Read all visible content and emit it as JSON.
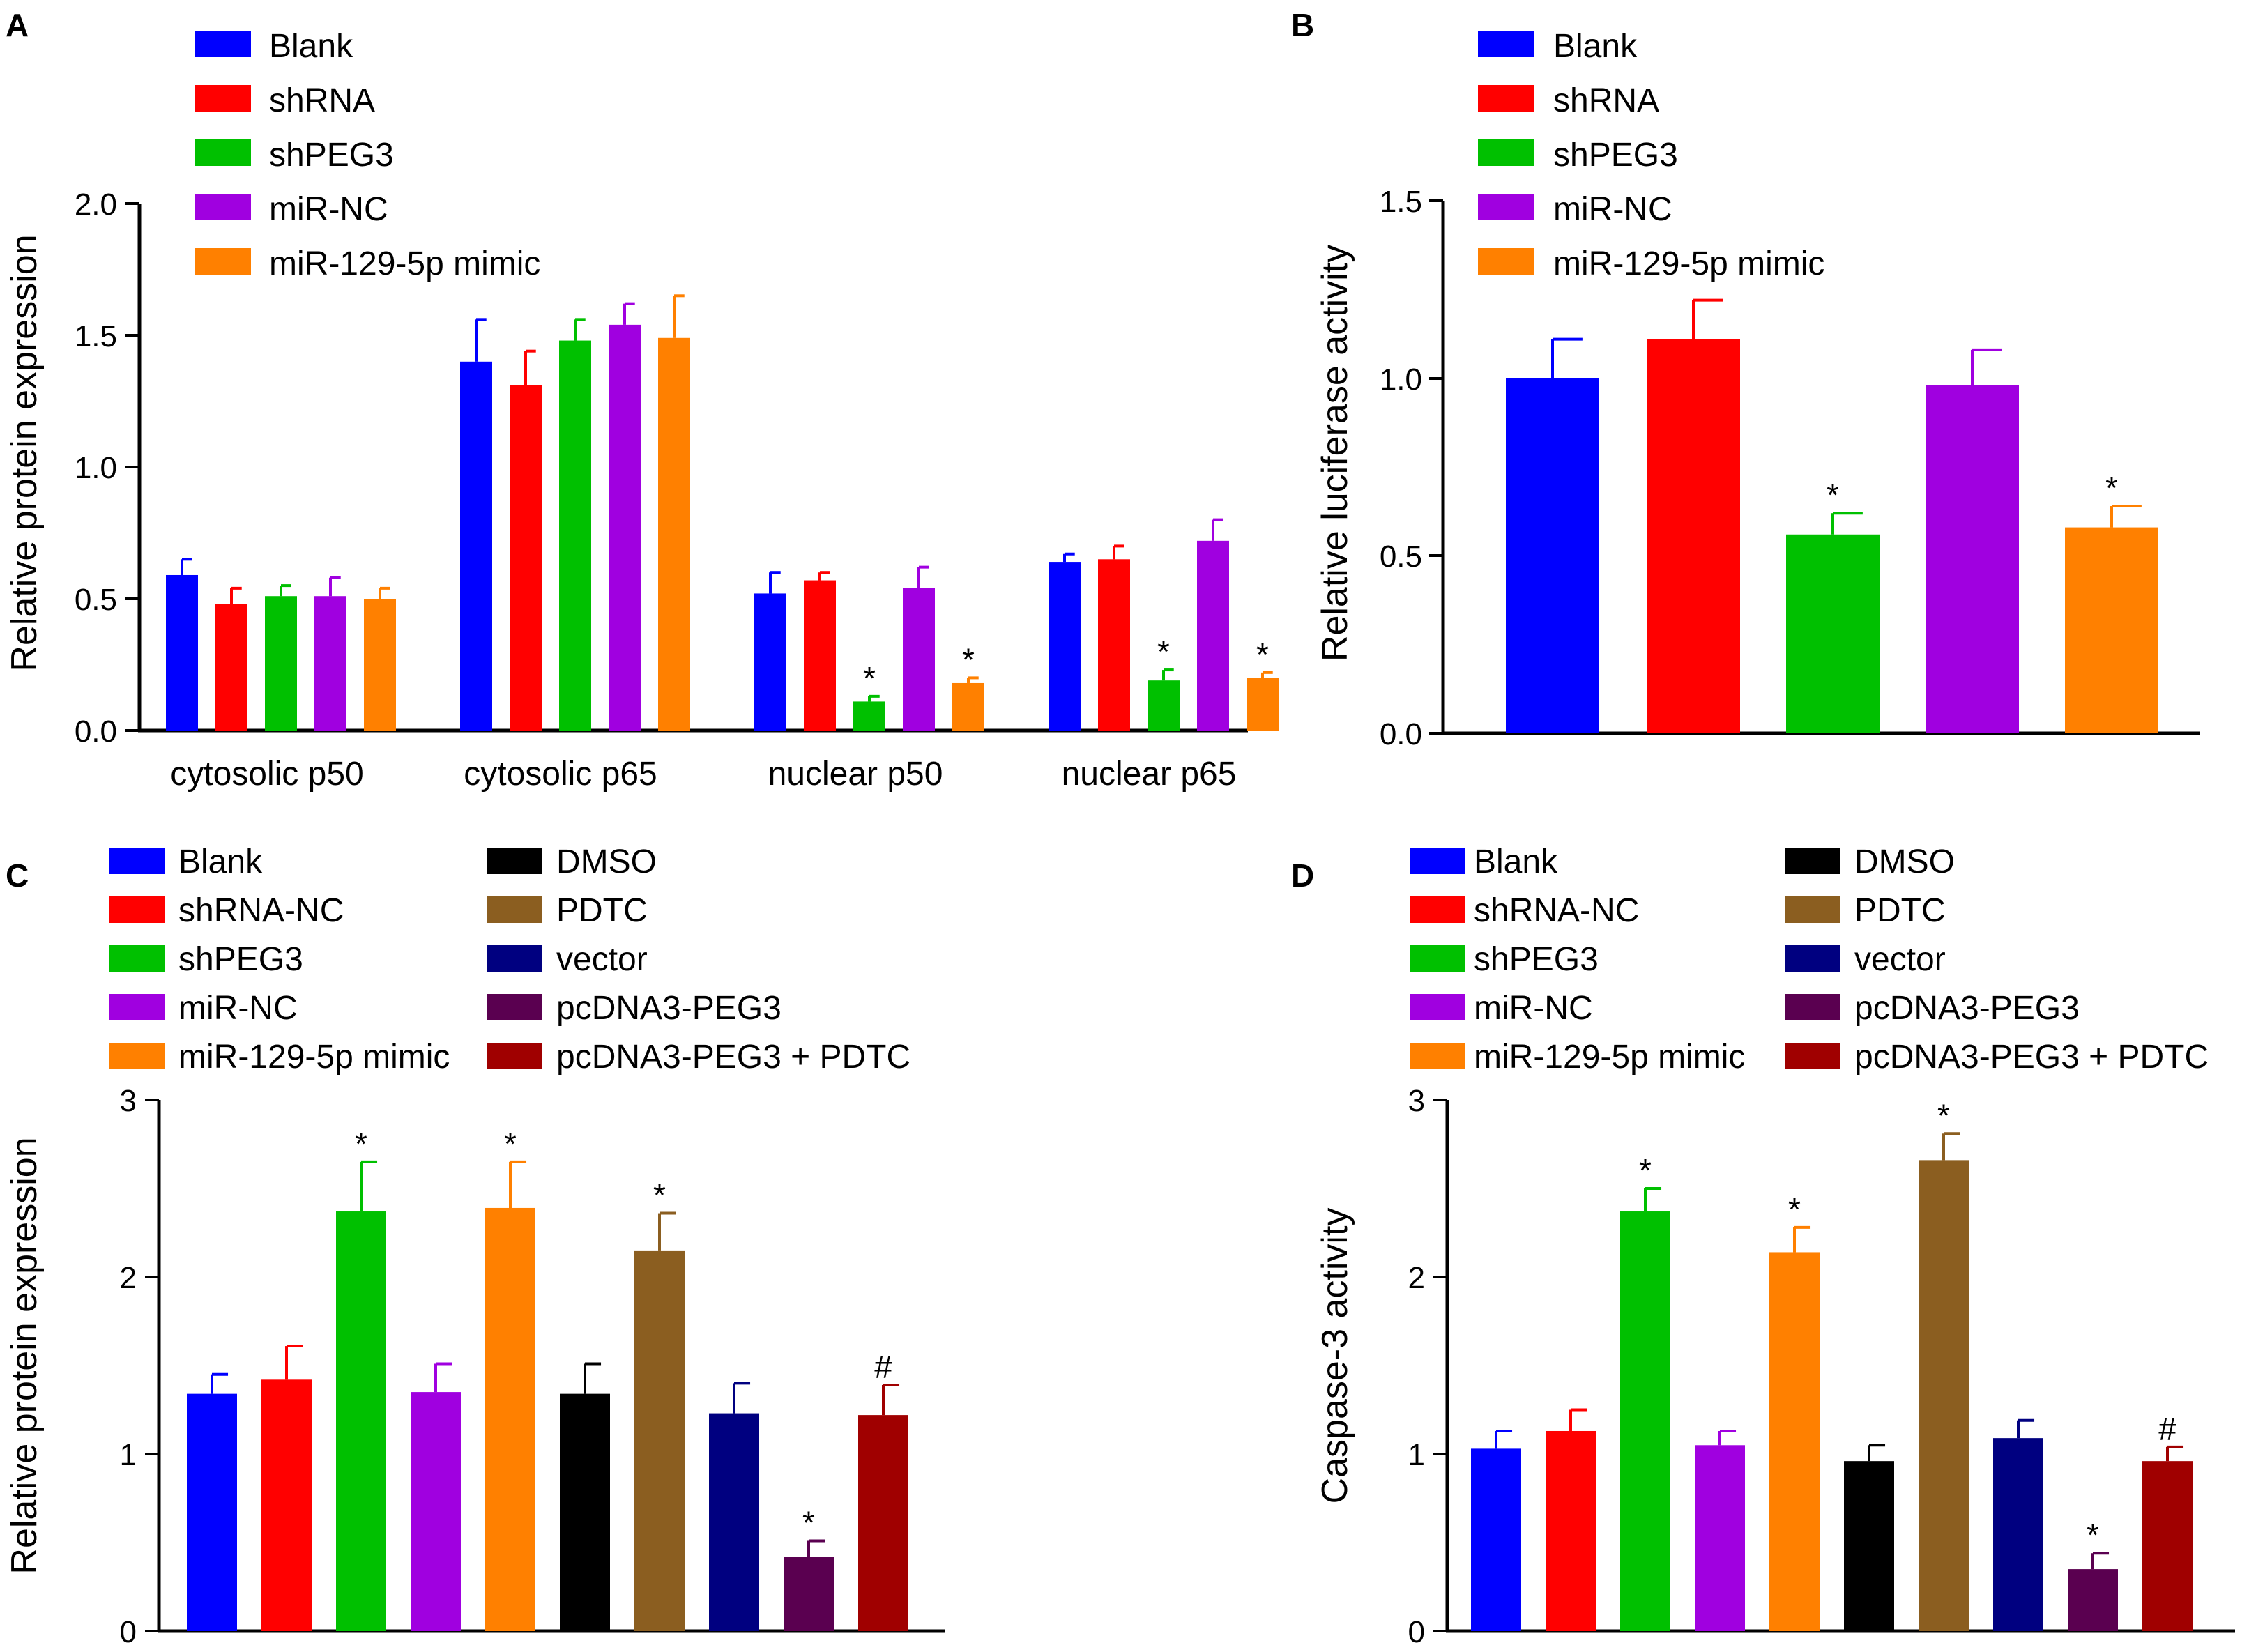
{
  "chart_data": [
    {
      "panel": "A",
      "type": "bar",
      "ylabel": "Relative protein expression",
      "ylim": [
        0,
        2.0
      ],
      "yticks": [
        "0.0",
        "0.5",
        "1.0",
        "1.5",
        "2.0"
      ],
      "categories": [
        "cytosolic p50",
        "cytosolic p65",
        "nuclear p50",
        "nuclear p65"
      ],
      "series": [
        {
          "name": "Blank",
          "color": "#0000ff",
          "values": [
            0.59,
            1.4,
            0.52,
            0.64
          ],
          "errors": [
            0.06,
            0.16,
            0.08,
            0.03
          ],
          "marks": [
            "",
            "",
            "",
            ""
          ]
        },
        {
          "name": "shRNA",
          "color": "#ff0000",
          "values": [
            0.48,
            1.31,
            0.57,
            0.65
          ],
          "errors": [
            0.06,
            0.13,
            0.03,
            0.05
          ],
          "marks": [
            "",
            "",
            "",
            ""
          ]
        },
        {
          "name": "shPEG3",
          "color": "#00c000",
          "values": [
            0.51,
            1.48,
            0.11,
            0.19
          ],
          "errors": [
            0.04,
            0.08,
            0.02,
            0.04
          ],
          "marks": [
            "",
            "",
            "*",
            "*"
          ]
        },
        {
          "name": "miR-NC",
          "color": "#a000e0",
          "values": [
            0.51,
            1.54,
            0.54,
            0.72
          ],
          "errors": [
            0.07,
            0.08,
            0.08,
            0.08
          ],
          "marks": [
            "",
            "",
            "",
            ""
          ]
        },
        {
          "name": "miR-129-5p mimic",
          "color": "#ff8000",
          "values": [
            0.5,
            1.49,
            0.18,
            0.2
          ],
          "errors": [
            0.04,
            0.16,
            0.02,
            0.02
          ],
          "marks": [
            "",
            "",
            "*",
            "*"
          ]
        }
      ]
    },
    {
      "panel": "B",
      "type": "bar",
      "ylabel": "Relative luciferase activity",
      "ylim": [
        0,
        1.5
      ],
      "yticks": [
        "0.0",
        "0.5",
        "1.0",
        "1.5"
      ],
      "categories": [
        "Blank",
        "shRNA",
        "shPEG3",
        "miR-NC",
        "miR-129-5p mimic"
      ],
      "values": [
        1.0,
        1.11,
        0.56,
        0.98,
        0.58
      ],
      "errors": [
        0.11,
        0.11,
        0.06,
        0.1,
        0.06
      ],
      "colors": [
        "#0000ff",
        "#ff0000",
        "#00c000",
        "#a000e0",
        "#ff8000"
      ],
      "marks": [
        "",
        "",
        "*",
        "",
        "*"
      ]
    },
    {
      "panel": "C",
      "type": "bar",
      "ylabel": "Relative protein expression",
      "ylim": [
        0,
        3
      ],
      "yticks": [
        "0",
        "1",
        "2",
        "3"
      ],
      "categories": [
        "Blank",
        "shRNA-NC",
        "shPEG3",
        "miR-NC",
        "miR-129-5p mimic",
        "DMSO",
        "PDTC",
        "vector",
        "pcDNA3-PEG3",
        "pcDNA3-PEG3 + PDTC"
      ],
      "values": [
        1.34,
        1.42,
        2.37,
        1.35,
        2.39,
        1.34,
        2.15,
        1.23,
        0.42,
        1.22
      ],
      "errors": [
        0.11,
        0.19,
        0.28,
        0.16,
        0.26,
        0.17,
        0.21,
        0.17,
        0.09,
        0.17
      ],
      "colors": [
        "#0000ff",
        "#ff0000",
        "#00c000",
        "#a000e0",
        "#ff8000",
        "#000000",
        "#8b5e20",
        "#000080",
        "#5a0050",
        "#a00000"
      ],
      "marks": [
        "",
        "",
        "*",
        "",
        "*",
        "",
        "*",
        "",
        "*",
        "#"
      ]
    },
    {
      "panel": "D",
      "type": "bar",
      "ylabel": "Caspase-3 activity",
      "ylim": [
        0,
        3
      ],
      "yticks": [
        "0",
        "1",
        "2",
        "3"
      ],
      "categories": [
        "Blank",
        "shRNA-NC",
        "shPEG3",
        "miR-NC",
        "miR-129-5p mimic",
        "DMSO",
        "PDTC",
        "vector",
        "pcDNA3-PEG3",
        "pcDNA3-PEG3 + PDTC"
      ],
      "values": [
        1.03,
        1.13,
        2.37,
        1.05,
        2.14,
        0.96,
        2.66,
        1.09,
        0.35,
        0.96
      ],
      "errors": [
        0.1,
        0.12,
        0.13,
        0.08,
        0.14,
        0.09,
        0.15,
        0.1,
        0.09,
        0.08
      ],
      "colors": [
        "#0000ff",
        "#ff0000",
        "#00c000",
        "#a000e0",
        "#ff8000",
        "#000000",
        "#8b5e20",
        "#000080",
        "#5a0050",
        "#a00000"
      ],
      "marks": [
        "",
        "",
        "*",
        "",
        "*",
        "",
        "*",
        "",
        "*",
        "#"
      ]
    }
  ]
}
